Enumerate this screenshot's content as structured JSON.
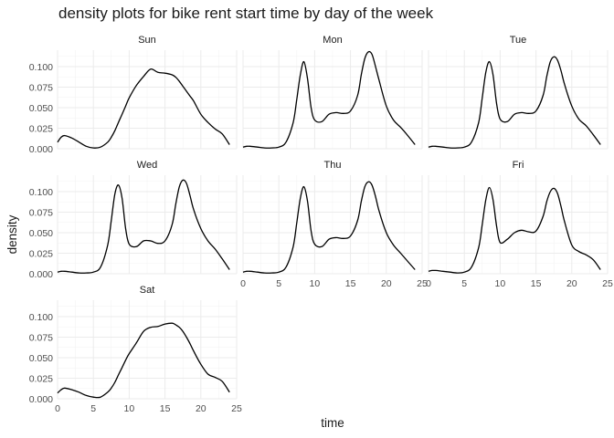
{
  "chart_data": {
    "type": "line",
    "title": "density plots for bike rent start time by day of the week",
    "xlabel": "time",
    "ylabel": "density",
    "xlim": [
      0,
      25
    ],
    "ylim": [
      0,
      0.12
    ],
    "x_ticks": [
      0,
      5,
      10,
      15,
      20,
      25
    ],
    "y_ticks": [
      0,
      0.025,
      0.05,
      0.075,
      0.1
    ],
    "y_tick_labels": [
      "0.000",
      "0.025",
      "0.050",
      "0.075",
      "0.100"
    ],
    "x_tick_labels": [
      "0",
      "5",
      "10",
      "15",
      "20",
      "25"
    ],
    "grid": true,
    "x": [
      0,
      0.5,
      1,
      2,
      3,
      4,
      5,
      6,
      7,
      7.5,
      8,
      8.5,
      9,
      9.5,
      10,
      11,
      12,
      13,
      14,
      15,
      16,
      16.5,
      17,
      17.5,
      18,
      18.5,
      19,
      20,
      21,
      22,
      23,
      24
    ],
    "series": [
      {
        "name": "Sun",
        "values": [
          0.008,
          0.014,
          0.016,
          0.013,
          0.008,
          0.003,
          0.001,
          0.002,
          0.008,
          0.014,
          0.022,
          0.032,
          0.042,
          0.052,
          0.062,
          0.077,
          0.088,
          0.097,
          0.093,
          0.092,
          0.09,
          0.087,
          0.082,
          0.076,
          0.07,
          0.064,
          0.058,
          0.042,
          0.032,
          0.024,
          0.018,
          0.005
        ]
      },
      {
        "name": "Mon",
        "values": [
          0.002,
          0.003,
          0.003,
          0.002,
          0.001,
          0.001,
          0.002,
          0.008,
          0.032,
          0.06,
          0.09,
          0.106,
          0.085,
          0.05,
          0.035,
          0.033,
          0.042,
          0.044,
          0.043,
          0.046,
          0.065,
          0.09,
          0.11,
          0.118,
          0.115,
          0.1,
          0.083,
          0.052,
          0.035,
          0.026,
          0.016,
          0.005
        ]
      },
      {
        "name": "Tue",
        "values": [
          0.002,
          0.003,
          0.003,
          0.002,
          0.001,
          0.001,
          0.002,
          0.008,
          0.032,
          0.062,
          0.093,
          0.106,
          0.09,
          0.055,
          0.036,
          0.033,
          0.042,
          0.044,
          0.043,
          0.046,
          0.065,
          0.088,
          0.106,
          0.112,
          0.108,
          0.095,
          0.078,
          0.052,
          0.036,
          0.028,
          0.017,
          0.005
        ]
      },
      {
        "name": "Wed",
        "values": [
          0.002,
          0.003,
          0.003,
          0.002,
          0.001,
          0.001,
          0.002,
          0.008,
          0.035,
          0.065,
          0.097,
          0.108,
          0.092,
          0.055,
          0.036,
          0.033,
          0.04,
          0.04,
          0.037,
          0.04,
          0.06,
          0.085,
          0.106,
          0.114,
          0.11,
          0.095,
          0.078,
          0.055,
          0.04,
          0.03,
          0.018,
          0.005
        ]
      },
      {
        "name": "Thu",
        "values": [
          0.002,
          0.003,
          0.003,
          0.002,
          0.001,
          0.001,
          0.002,
          0.008,
          0.033,
          0.062,
          0.092,
          0.106,
          0.088,
          0.052,
          0.036,
          0.033,
          0.042,
          0.044,
          0.043,
          0.046,
          0.065,
          0.088,
          0.106,
          0.112,
          0.108,
          0.094,
          0.076,
          0.05,
          0.035,
          0.025,
          0.015,
          0.005
        ]
      },
      {
        "name": "Fri",
        "values": [
          0.003,
          0.004,
          0.004,
          0.003,
          0.002,
          0.001,
          0.002,
          0.008,
          0.032,
          0.06,
          0.09,
          0.105,
          0.09,
          0.058,
          0.038,
          0.042,
          0.05,
          0.053,
          0.051,
          0.052,
          0.07,
          0.088,
          0.1,
          0.104,
          0.098,
          0.082,
          0.063,
          0.035,
          0.027,
          0.023,
          0.017,
          0.005
        ]
      },
      {
        "name": "Sat",
        "values": [
          0.007,
          0.011,
          0.013,
          0.011,
          0.008,
          0.004,
          0.002,
          0.002,
          0.008,
          0.013,
          0.02,
          0.029,
          0.038,
          0.047,
          0.055,
          0.068,
          0.082,
          0.087,
          0.088,
          0.091,
          0.092,
          0.09,
          0.087,
          0.082,
          0.075,
          0.067,
          0.058,
          0.042,
          0.03,
          0.026,
          0.021,
          0.008
        ]
      }
    ]
  }
}
